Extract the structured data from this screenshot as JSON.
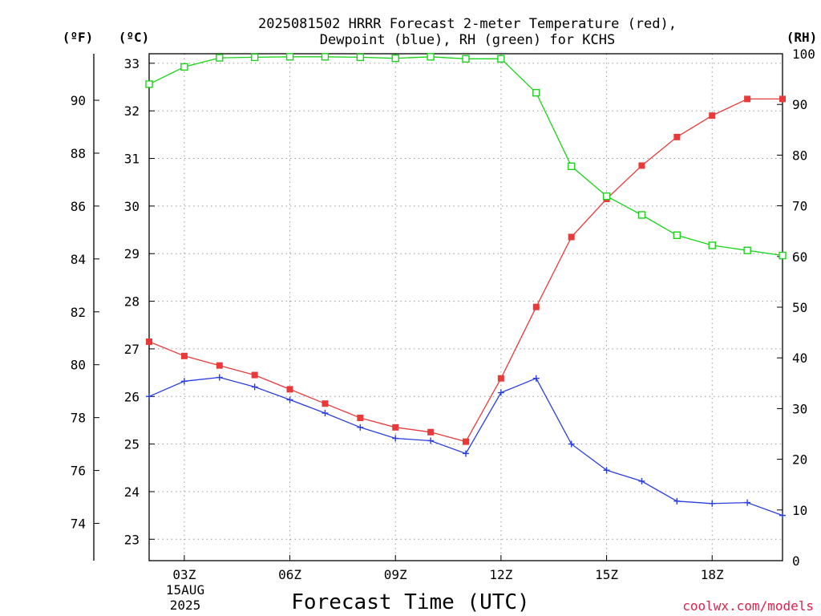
{
  "chart_data": {
    "type": "line",
    "title_line1": "2025081502 HRRR Forecast 2-meter Temperature (red),",
    "title_line2": "Dewpoint (blue), RH (green) for KCHS",
    "xlabel": "Forecast Time (UTC)",
    "credit": "coolwx.com/models",
    "date_label_line1": "15AUG",
    "date_label_line2": "2025",
    "axis_units": {
      "fahrenheit": "(ºF)",
      "celsius": "(ºC)",
      "rh": "(RH)"
    },
    "x": [
      2,
      3,
      4,
      5,
      6,
      7,
      8,
      9,
      10,
      11,
      12,
      13,
      14,
      15,
      16,
      17,
      18,
      19,
      20
    ],
    "xlim": [
      2,
      20
    ],
    "x_ticks": [
      {
        "value": 3,
        "label": "03Z"
      },
      {
        "value": 6,
        "label": "06Z"
      },
      {
        "value": 9,
        "label": "09Z"
      },
      {
        "value": 12,
        "label": "12Z"
      },
      {
        "value": 15,
        "label": "15Z"
      },
      {
        "value": 18,
        "label": "18Z"
      }
    ],
    "celsius_axis": {
      "lim": [
        22.55,
        33.2
      ],
      "ticks": [
        "23",
        "24",
        "25",
        "26",
        "27",
        "28",
        "29",
        "30",
        "31",
        "32",
        "33"
      ]
    },
    "fahrenheit_axis": {
      "lim": [
        72.59,
        91.76
      ],
      "ticks": [
        "74",
        "76",
        "78",
        "80",
        "82",
        "84",
        "86",
        "88",
        "90"
      ]
    },
    "rh_axis": {
      "lim": [
        0,
        100
      ],
      "ticks": [
        "0",
        "10",
        "20",
        "30",
        "40",
        "50",
        "60",
        "70",
        "80",
        "90",
        "100"
      ]
    },
    "grid": true,
    "series": [
      {
        "axis": "celsius",
        "color": "#e83a3a",
        "marker": "filled-square",
        "values": [
          27.15,
          26.85,
          26.65,
          26.45,
          26.15,
          25.85,
          25.55,
          25.35,
          25.25,
          25.05,
          26.38,
          27.88,
          29.35,
          30.15,
          30.85,
          31.45,
          31.9,
          32.25,
          32.25
        ]
      },
      {
        "axis": "celsius",
        "color": "#2a3fe0",
        "marker": "plus",
        "values": [
          26.0,
          26.32,
          26.4,
          26.2,
          25.93,
          25.65,
          25.35,
          25.12,
          25.07,
          24.8,
          26.08,
          26.38,
          25.0,
          24.45,
          24.22,
          23.8,
          23.75,
          23.77,
          23.5
        ]
      },
      {
        "axis": "rh",
        "color": "#19d419",
        "marker": "open-square",
        "values": [
          94,
          97.4,
          99.2,
          99.3,
          99.4,
          99.4,
          99.3,
          99.1,
          99.4,
          99.0,
          99.0,
          92.3,
          77.8,
          71.9,
          68.2,
          64.2,
          62.2,
          61.2,
          60.2
        ]
      }
    ]
  }
}
